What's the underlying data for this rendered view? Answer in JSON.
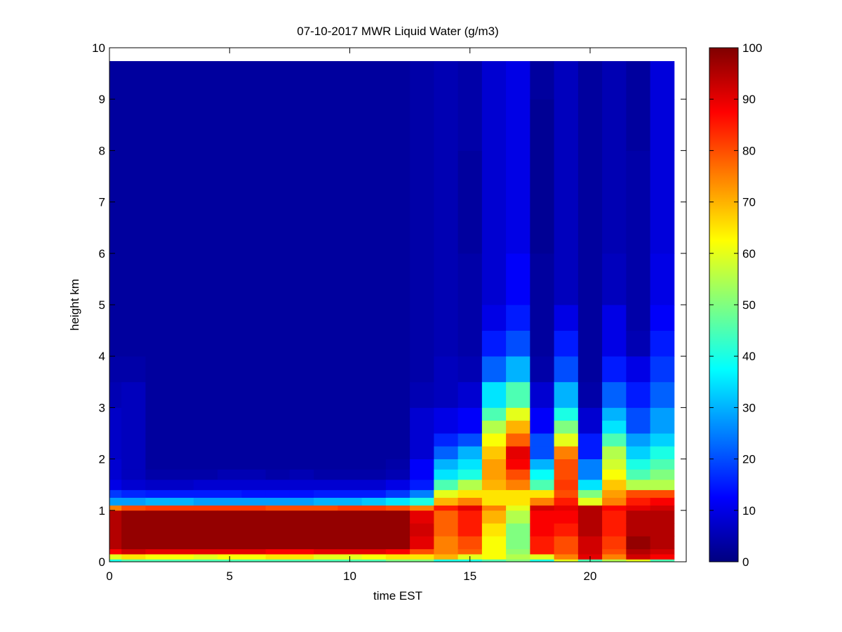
{
  "chart_data": {
    "type": "heatmap",
    "title": "07-10-2017 MWR Liquid Water (g/m3)",
    "x_label": "time EST",
    "y_label": "height km",
    "xlim": [
      0,
      24
    ],
    "ylim": [
      0,
      10
    ],
    "xticks": [
      0,
      5,
      10,
      15,
      20
    ],
    "yticks": [
      0,
      1,
      2,
      3,
      4,
      5,
      6,
      7,
      8,
      9,
      10
    ],
    "clim": [
      0,
      100
    ],
    "cticks": [
      0,
      10,
      20,
      30,
      40,
      50,
      60,
      70,
      80,
      90,
      100
    ],
    "colormap": "jet",
    "x": [
      0,
      1,
      2,
      3,
      4,
      5,
      6,
      7,
      8,
      9,
      10,
      11,
      12,
      13,
      14,
      15,
      16,
      17,
      18,
      19,
      20,
      21,
      22,
      23
    ],
    "y_bins": [
      0,
      0.05,
      0.15,
      0.25,
      0.5,
      0.75,
      1,
      1.1,
      1.25,
      1.4,
      1.6,
      1.8,
      2,
      2.25,
      2.5,
      2.75,
      3,
      3.5,
      4,
      4.5,
      5,
      6,
      7,
      8,
      9,
      9.74
    ],
    "z": [
      [
        40,
        60,
        88,
        95,
        95,
        95,
        75,
        28,
        18,
        10,
        8,
        8,
        7,
        7,
        7,
        7,
        5,
        4,
        3,
        3,
        3,
        3,
        3,
        3,
        3
      ],
      [
        45,
        65,
        92,
        98,
        98,
        98,
        80,
        28,
        16,
        8,
        6,
        6,
        6,
        6,
        6,
        6,
        6,
        4,
        3,
        3,
        3,
        3,
        3,
        3,
        3
      ],
      [
        45,
        62,
        90,
        98,
        98,
        98,
        82,
        30,
        15,
        7,
        4,
        3,
        3,
        3,
        3,
        3,
        3,
        3,
        3,
        3,
        3,
        3,
        3,
        3,
        3
      ],
      [
        45,
        62,
        90,
        98,
        98,
        98,
        82,
        30,
        15,
        7,
        4,
        3,
        3,
        3,
        3,
        3,
        3,
        3,
        3,
        3,
        3,
        3,
        3,
        3,
        3
      ],
      [
        45,
        60,
        90,
        98,
        98,
        98,
        82,
        28,
        15,
        8,
        4,
        3,
        3,
        3,
        3,
        3,
        3,
        3,
        3,
        3,
        3,
        3,
        3,
        3,
        3
      ],
      [
        45,
        62,
        90,
        98,
        98,
        98,
        82,
        28,
        15,
        8,
        5,
        3,
        3,
        3,
        3,
        3,
        3,
        3,
        3,
        3,
        3,
        3,
        3,
        3,
        3
      ],
      [
        45,
        62,
        90,
        98,
        98,
        98,
        82,
        28,
        14,
        8,
        5,
        3,
        3,
        3,
        3,
        3,
        3,
        3,
        3,
        3,
        3,
        3,
        3,
        3,
        3
      ],
      [
        45,
        65,
        88,
        98,
        98,
        98,
        80,
        28,
        14,
        8,
        4,
        3,
        3,
        3,
        3,
        3,
        3,
        3,
        3,
        3,
        3,
        3,
        3,
        3,
        3
      ],
      [
        45,
        65,
        88,
        98,
        98,
        98,
        80,
        28,
        14,
        8,
        5,
        3,
        3,
        3,
        3,
        3,
        3,
        3,
        3,
        3,
        3,
        3,
        3,
        3,
        3
      ],
      [
        45,
        60,
        90,
        98,
        98,
        98,
        80,
        30,
        15,
        8,
        4,
        3,
        3,
        3,
        3,
        3,
        3,
        3,
        3,
        3,
        3,
        3,
        3,
        3,
        3
      ],
      [
        45,
        60,
        90,
        98,
        98,
        98,
        82,
        30,
        15,
        8,
        4,
        3,
        3,
        3,
        3,
        3,
        3,
        3,
        3,
        3,
        3,
        3,
        3,
        3,
        3
      ],
      [
        45,
        62,
        90,
        98,
        98,
        98,
        82,
        32,
        15,
        8,
        4,
        3,
        3,
        3,
        3,
        3,
        3,
        3,
        3,
        3,
        3,
        3,
        3,
        3,
        3
      ],
      [
        50,
        65,
        88,
        98,
        98,
        98,
        80,
        35,
        18,
        10,
        5,
        4,
        3,
        3,
        3,
        3,
        3,
        3,
        3,
        3,
        3,
        3,
        3,
        3,
        3
      ],
      [
        50,
        65,
        80,
        90,
        92,
        90,
        75,
        40,
        25,
        15,
        12,
        12,
        8,
        8,
        8,
        8,
        5,
        4,
        4,
        4,
        4,
        4,
        4,
        4,
        4
      ],
      [
        40,
        70,
        75,
        75,
        78,
        78,
        85,
        70,
        60,
        45,
        35,
        30,
        22,
        16,
        10,
        10,
        6,
        6,
        5,
        5,
        5,
        5,
        5,
        5,
        5
      ],
      [
        40,
        60,
        78,
        80,
        85,
        85,
        90,
        75,
        65,
        55,
        40,
        35,
        30,
        20,
        12,
        12,
        8,
        5,
        4,
        4,
        4,
        3,
        3,
        4,
        4
      ],
      [
        45,
        62,
        62,
        62,
        65,
        70,
        75,
        65,
        65,
        70,
        72,
        72,
        68,
        62,
        55,
        45,
        35,
        22,
        15,
        10,
        8,
        8,
        8,
        8,
        8
      ],
      [
        50,
        55,
        52,
        50,
        50,
        55,
        60,
        65,
        65,
        75,
        80,
        88,
        90,
        78,
        70,
        60,
        45,
        30,
        20,
        15,
        12,
        10,
        10,
        10,
        10
      ],
      [
        40,
        60,
        85,
        85,
        88,
        88,
        92,
        75,
        65,
        45,
        38,
        30,
        20,
        20,
        12,
        12,
        8,
        4,
        3,
        3,
        3,
        2,
        2,
        2,
        3
      ],
      [
        60,
        75,
        80,
        80,
        85,
        88,
        90,
        85,
        80,
        82,
        80,
        80,
        75,
        60,
        50,
        40,
        30,
        20,
        15,
        10,
        6,
        6,
        6,
        6,
        6
      ],
      [
        45,
        90,
        92,
        92,
        95,
        95,
        95,
        60,
        50,
        35,
        25,
        25,
        15,
        15,
        8,
        8,
        4,
        3,
        3,
        3,
        3,
        3,
        3,
        3,
        3
      ],
      [
        55,
        75,
        80,
        82,
        85,
        85,
        88,
        75,
        72,
        68,
        62,
        58,
        55,
        45,
        35,
        30,
        22,
        15,
        10,
        10,
        6,
        5,
        5,
        5,
        5
      ],
      [
        60,
        92,
        95,
        98,
        95,
        95,
        90,
        85,
        80,
        55,
        45,
        40,
        33,
        28,
        20,
        20,
        15,
        10,
        5,
        4,
        4,
        4,
        4,
        3,
        3
      ],
      [
        45,
        88,
        92,
        95,
        95,
        95,
        92,
        88,
        80,
        55,
        50,
        45,
        40,
        33,
        28,
        28,
        22,
        18,
        15,
        12,
        10,
        9,
        9,
        9,
        9
      ]
    ]
  }
}
